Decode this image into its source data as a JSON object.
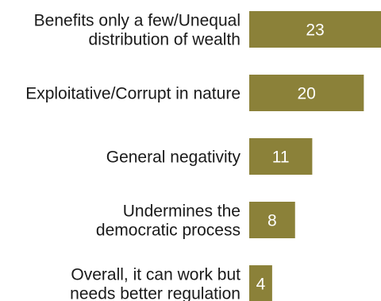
{
  "chart_data": {
    "type": "bar",
    "orientation": "horizontal",
    "categories": [
      [
        "Benefits only a few/Unequal",
        "distribution of wealth"
      ],
      [
        "Exploitative/Corrupt in nature"
      ],
      [
        "General negativity"
      ],
      [
        "Undermines the",
        "democratic process"
      ],
      [
        "Overall, it can work but",
        "needs better regulation"
      ]
    ],
    "values": [
      23,
      20,
      11,
      8,
      4
    ],
    "data_labels": [
      "23",
      "20",
      "11",
      "8",
      "4"
    ],
    "bar_color": "#8b8139",
    "label_color": "#ffffff",
    "xlim": [
      0,
      23
    ],
    "grid": false,
    "legend": "none"
  }
}
